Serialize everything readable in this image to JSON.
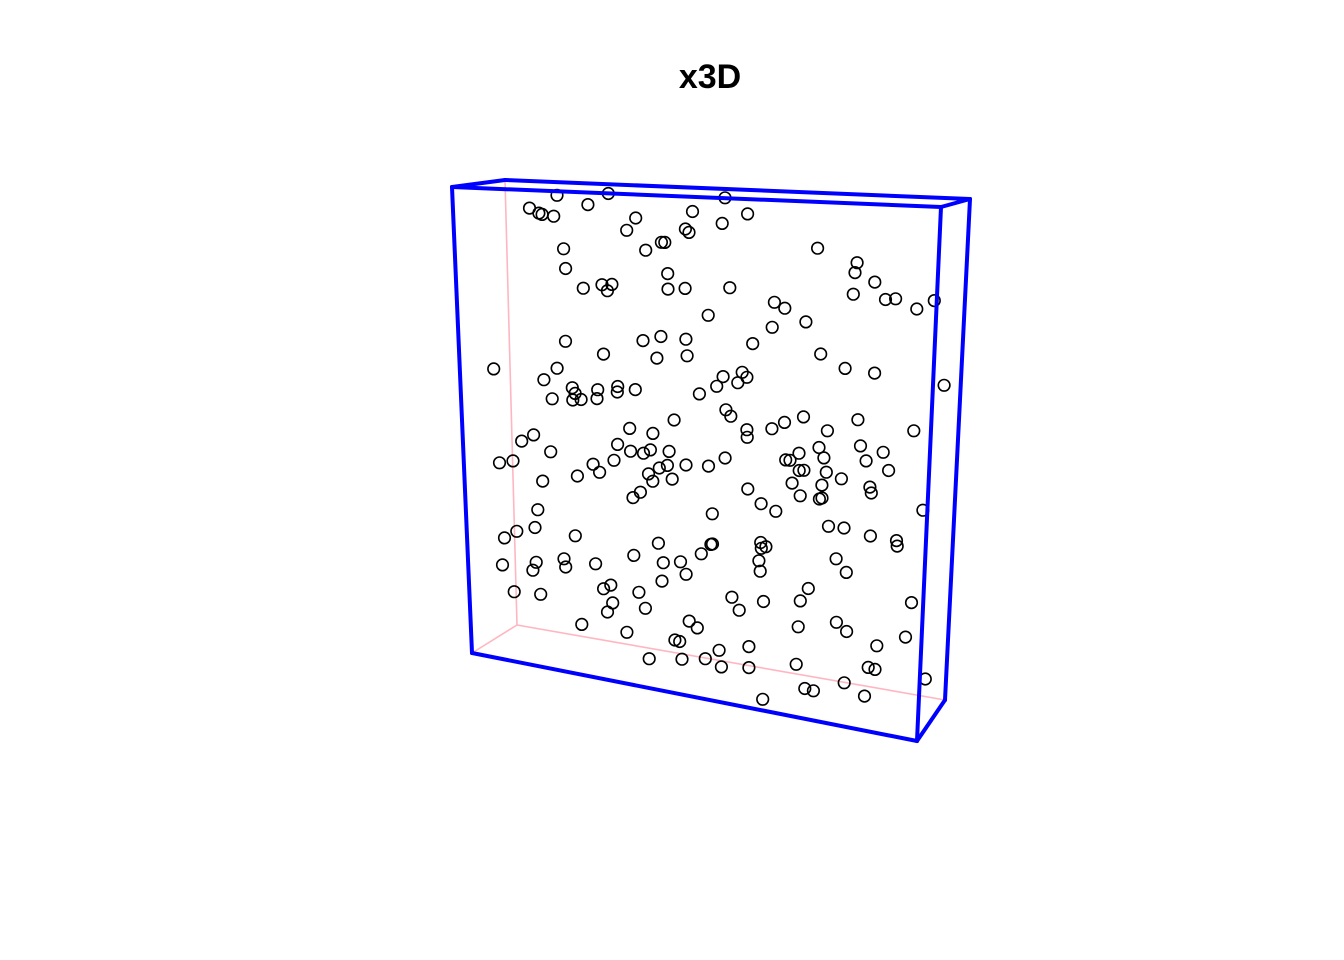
{
  "chart_data": {
    "type": "scatter",
    "title": "x3D",
    "box": {
      "front_edge_color": "#0000ff",
      "hidden_edge_color": "#ffb6c1"
    },
    "marker": "open-circle",
    "xlim": [
      0,
      1
    ],
    "ylim": [
      0,
      1
    ],
    "points": [
      [
        0.2146,
        0.9916
      ],
      [
        0.2846,
        0.9927
      ],
      [
        0.4963,
        0.9866
      ],
      [
        0.267,
        0.9728
      ],
      [
        0.134,
        0.9394
      ],
      [
        0.068,
        0.9431
      ],
      [
        0.185,
        0.9429
      ],
      [
        0.3207,
        0.9389
      ],
      [
        0.526,
        0.9503
      ],
      [
        0.5258,
        0.9425
      ],
      [
        0.431,
        0.9557
      ],
      [
        0.3503,
        0.9245
      ],
      [
        0.447,
        0.918
      ],
      [
        0.406,
        0.9156
      ],
      [
        0.4193,
        0.9012
      ],
      [
        0.3788,
        0.8916
      ],
      [
        0.6817,
        0.8875
      ],
      [
        0.8125,
        0.8796
      ],
      [
        0.7829,
        0.8496
      ],
      [
        0.9127,
        0.8221
      ],
      [
        0.8677,
        0.8081
      ],
      [
        0.7728,
        0.8026
      ],
      [
        0.2155,
        0.8362
      ],
      [
        0.2555,
        0.7956
      ],
      [
        0.178,
        0.773
      ],
      [
        0.419,
        0.836
      ],
      [
        0.519,
        0.804
      ],
      [
        0.585,
        0.7676
      ],
      [
        0.446,
        0.8045
      ],
      [
        0.629,
        0.766
      ],
      [
        0.306,
        0.797
      ],
      [
        0.2805,
        0.799
      ],
      [
        0.366,
        0.785
      ],
      [
        0.508,
        0.758
      ],
      [
        0.573,
        0.694
      ],
      [
        0.658,
        0.733
      ],
      [
        0.635,
        0.74
      ],
      [
        0.712,
        0.68
      ],
      [
        0.81,
        0.681
      ],
      [
        0.848,
        0.662
      ],
      [
        0.409,
        0.683
      ],
      [
        0.403,
        0.664
      ],
      [
        0.435,
        0.659
      ],
      [
        0.344,
        0.68
      ],
      [
        0.279,
        0.658
      ],
      [
        0.161,
        0.663
      ],
      [
        0.07,
        0.616
      ],
      [
        0.139,
        0.587
      ],
      [
        0.13,
        0.598
      ],
      [
        0.244,
        0.565
      ],
      [
        0.288,
        0.583
      ],
      [
        0.206,
        0.535
      ],
      [
        0.171,
        0.555
      ],
      [
        0.184,
        0.554
      ],
      [
        0.14,
        0.548
      ],
      [
        0.259,
        0.579
      ],
      [
        0.266,
        0.561
      ],
      [
        0.23,
        0.564
      ],
      [
        0.33,
        0.582
      ],
      [
        0.541,
        0.613
      ],
      [
        0.573,
        0.628
      ],
      [
        0.552,
        0.634
      ],
      [
        0.479,
        0.605
      ],
      [
        0.519,
        0.612
      ],
      [
        0.45,
        0.576
      ],
      [
        0.45,
        0.547
      ],
      [
        0.541,
        0.549
      ],
      [
        0.499,
        0.543
      ],
      [
        0.597,
        0.538
      ],
      [
        0.622,
        0.527
      ],
      [
        0.662,
        0.539
      ],
      [
        0.669,
        0.555
      ],
      [
        0.735,
        0.529
      ],
      [
        0.763,
        0.526
      ],
      [
        0.819,
        0.57
      ],
      [
        0.801,
        0.5
      ],
      [
        0.857,
        0.505
      ],
      [
        0.74,
        0.482
      ],
      [
        0.331,
        0.473
      ],
      [
        0.312,
        0.475
      ],
      [
        0.304,
        0.492
      ],
      [
        0.315,
        0.431
      ],
      [
        0.358,
        0.457
      ],
      [
        0.381,
        0.447
      ],
      [
        0.433,
        0.452
      ],
      [
        0.527,
        0.461
      ],
      [
        0.631,
        0.451
      ],
      [
        0.719,
        0.469
      ],
      [
        0.68,
        0.482
      ],
      [
        0.653,
        0.426
      ],
      [
        0.686,
        0.435
      ],
      [
        0.733,
        0.444
      ],
      [
        0.61,
        0.427
      ],
      [
        0.743,
        0.432
      ],
      [
        0.759,
        0.428
      ],
      [
        0.757,
        0.419
      ],
      [
        0.736,
        0.4
      ],
      [
        0.819,
        0.4
      ],
      [
        0.858,
        0.448
      ],
      [
        0.873,
        0.464
      ],
      [
        0.127,
        0.47
      ],
      [
        0.152,
        0.435
      ],
      [
        0.077,
        0.447
      ],
      [
        0.066,
        0.412
      ],
      [
        0.057,
        0.399
      ],
      [
        0.282,
        0.43
      ],
      [
        0.259,
        0.428
      ],
      [
        0.346,
        0.401
      ],
      [
        0.396,
        0.408
      ],
      [
        0.379,
        0.402
      ],
      [
        0.36,
        0.41
      ],
      [
        0.375,
        0.391
      ],
      [
        0.412,
        0.405
      ],
      [
        0.46,
        0.42
      ],
      [
        0.152,
        0.381
      ],
      [
        0.192,
        0.38
      ],
      [
        0.205,
        0.372
      ],
      [
        0.339,
        0.365
      ],
      [
        0.263,
        0.417
      ],
      [
        0.64,
        0.402
      ],
      [
        0.644,
        0.369
      ],
      [
        0.669,
        0.384
      ],
      [
        0.632,
        0.319
      ],
      [
        0.753,
        0.346
      ],
      [
        0.761,
        0.323
      ],
      [
        0.79,
        0.301
      ],
      [
        0.839,
        0.331
      ],
      [
        0.873,
        0.304
      ],
      [
        0.916,
        0.335
      ],
      [
        0.946,
        0.388
      ],
      [
        0.1,
        0.271
      ],
      [
        0.103,
        0.261
      ],
      [
        0.156,
        0.231
      ],
      [
        0.13,
        0.204
      ],
      [
        0.159,
        0.178
      ],
      [
        0.118,
        0.169
      ],
      [
        0.043,
        0.179
      ],
      [
        0.073,
        0.152
      ],
      [
        0.094,
        0.144
      ],
      [
        0.116,
        0.121
      ],
      [
        0.223,
        0.128
      ],
      [
        0.291,
        0.127
      ],
      [
        0.328,
        0.152
      ],
      [
        0.347,
        0.156
      ],
      [
        0.366,
        0.14
      ],
      [
        0.258,
        0.112
      ],
      [
        0.247,
        0.103
      ],
      [
        0.314,
        0.075
      ],
      [
        0.423,
        0.092
      ],
      [
        0.445,
        0.097
      ],
      [
        0.464,
        0.101
      ],
      [
        0.511,
        0.148
      ],
      [
        0.579,
        0.171
      ],
      [
        0.604,
        0.169
      ],
      [
        0.659,
        0.154
      ],
      [
        0.703,
        0.149
      ],
      [
        0.762,
        0.142
      ],
      [
        0.829,
        0.175
      ],
      [
        0.873,
        0.129
      ],
      [
        0.913,
        0.126
      ],
      [
        0.455,
        0.055
      ],
      [
        0.508,
        0.057
      ],
      [
        0.546,
        0.045
      ],
      [
        0.597,
        0.054
      ],
      [
        0.676,
        0.047
      ],
      [
        0.762,
        0.053
      ],
      [
        0.805,
        0.049
      ],
      [
        0.849,
        0.055
      ],
      [
        0.869,
        0.052
      ],
      [
        0.48,
        0.038
      ],
      [
        0.389,
        0.034
      ],
      [
        0.375,
        0.038
      ],
      [
        0.508,
        0.018
      ],
      [
        0.652,
        0.021
      ],
      [
        0.719,
        0.027
      ],
      [
        0.836,
        0.06
      ],
      [
        0.458,
        0.258
      ],
      [
        0.494,
        0.278
      ],
      [
        0.572,
        0.233
      ],
      [
        0.625,
        0.256
      ],
      [
        0.608,
        0.282
      ],
      [
        0.568,
        0.252
      ],
      [
        0.401,
        0.236
      ],
      [
        0.357,
        0.25
      ],
      [
        0.507,
        0.283
      ],
      [
        0.501,
        0.282
      ],
      [
        0.41,
        0.185
      ],
      [
        0.264,
        0.222
      ],
      [
        0.708,
        0.213
      ],
      [
        0.766,
        0.23
      ],
      [
        0.287,
        0.175
      ],
      [
        0.305,
        0.219
      ],
      [
        0.972,
        0.253
      ],
      [
        0.988,
        0.085
      ],
      [
        0.977,
        0.635
      ],
      [
        0.986,
        0.82
      ],
      [
        0.927,
        0.79
      ],
      [
        0.908,
        0.534
      ],
      [
        0.884,
        0.518
      ],
      [
        0.828,
        0.834
      ],
      [
        0.537,
        0.371
      ],
      [
        0.675,
        0.476
      ],
      [
        0.551,
        0.493
      ],
      [
        0.215,
        0.878
      ],
      [
        0.352,
        0.875
      ],
      [
        0.088,
        0.933
      ],
      [
        0.06,
        0.245
      ],
      [
        0.098,
        0.293
      ],
      [
        0.3,
        0.666
      ]
    ]
  }
}
